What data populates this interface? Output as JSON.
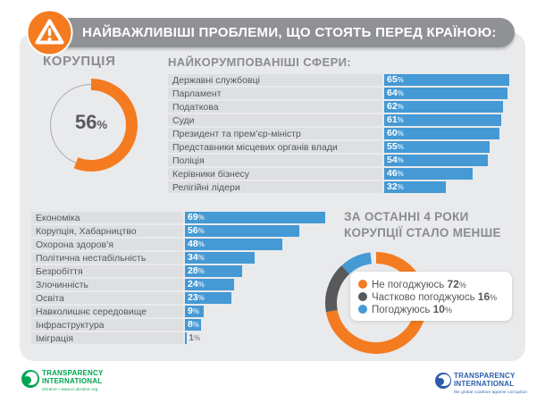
{
  "header": {
    "title": "НАЙВАЖЛИВІШІ ПРОБЛЕМИ, ЩО СТОЯТЬ ПЕРЕД КРАЇНОЮ:"
  },
  "colors": {
    "orange": "#f47b20",
    "blue": "#4599d4",
    "dark": "#58595b",
    "heading": "#8a8c8e",
    "pill": "#8f9194",
    "panel": "#e9eaec",
    "strip": "#dddfe1"
  },
  "chart_data": [
    {
      "type": "donut",
      "title": "КОРУПЦІЯ",
      "value": 56,
      "unit": "%",
      "center_label": "56",
      "color": "#f47b20"
    },
    {
      "type": "bar",
      "title": "НАЙКОРУМПОВАНІШІ СФЕРИ:",
      "categories": [
        "Державні службовці",
        "Парламент",
        "Податкова",
        "Суди",
        "Президент та прем’єр-міністр",
        "Представники місцевих органів влади",
        "Поліція",
        "Керівники бізнесу",
        "Релігійні лідери"
      ],
      "values": [
        65,
        64,
        62,
        61,
        60,
        55,
        54,
        46,
        32
      ],
      "unit": "%",
      "bar_color": "#4599d4",
      "xlim": [
        0,
        100
      ]
    },
    {
      "type": "bar",
      "categories": [
        "Економіка",
        "Корупція, Хабарництво",
        "Охорона здоров’я",
        "Політична нестабільність",
        "Безробіття",
        "Злочинність",
        "Освіта",
        "Навколишнє середовище",
        "Інфраструктура",
        "Іміграція"
      ],
      "values": [
        69,
        56,
        48,
        34,
        28,
        24,
        23,
        9,
        8,
        1
      ],
      "unit": "%",
      "bar_color": "#4599d4",
      "xlim": [
        0,
        100
      ]
    },
    {
      "type": "donut",
      "title_lines": [
        "ЗА ОСТАННІ 4 РОКИ",
        "КОРУПЦІЇ СТАЛО МЕНШЕ"
      ],
      "unit": "%",
      "segments": [
        {
          "label": "Не погоджуюсь",
          "value": 72,
          "color": "#f47b20"
        },
        {
          "label": "Частково погоджуюсь",
          "value": 16,
          "color": "#58595b"
        },
        {
          "label": "Погоджуюсь",
          "value": 10,
          "color": "#4599d4"
        }
      ],
      "legend_position": "right-overlay"
    }
  ],
  "footer": {
    "left_logo": {
      "line1": "TRANSPARENCY",
      "line2": "INTERNATIONAL",
      "subline": "Ukraine • www.ti-ukraine.org",
      "color": "#00a551"
    },
    "right_logo": {
      "line1": "TRANSPARENCY",
      "line2": "INTERNATIONAL",
      "subline": "the global coalition against corruption",
      "color": "#2a5caa"
    }
  }
}
